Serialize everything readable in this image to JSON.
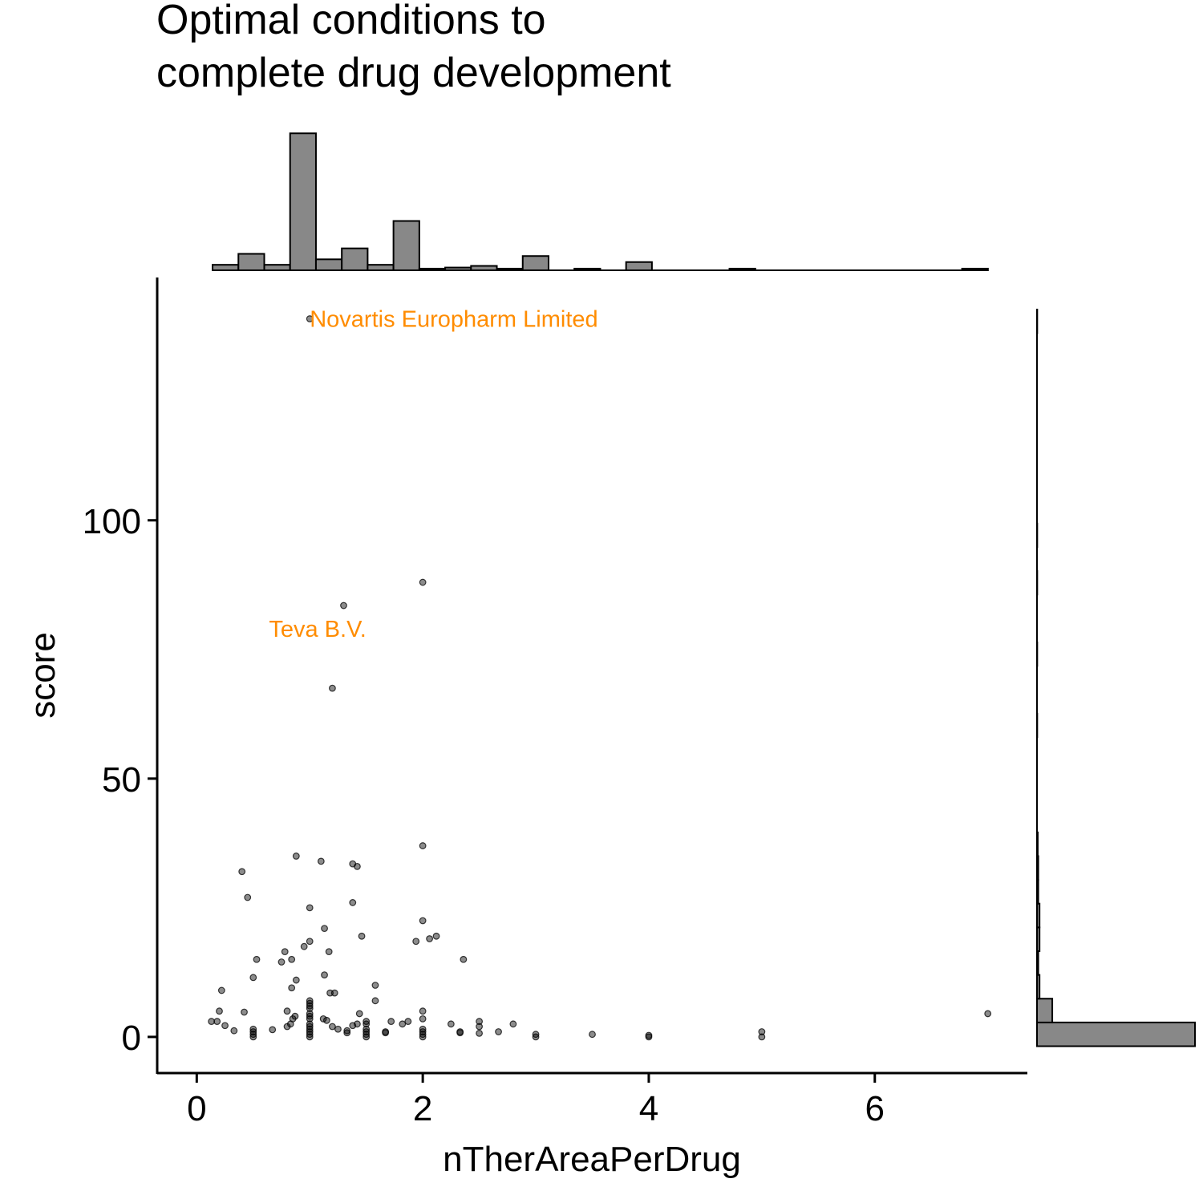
{
  "chart_data": {
    "type": "scatter",
    "title_lines": [
      "Optimal conditions to",
      "complete drug development"
    ],
    "xlabel": "nTherAreaPerDrug",
    "ylabel": "score",
    "xlim": [
      -0.35,
      7.35
    ],
    "ylim": [
      -7,
      147
    ],
    "x_ticks": [
      0,
      2,
      4,
      6
    ],
    "y_ticks": [
      0,
      50,
      100
    ],
    "grid": false,
    "legend": "none",
    "colors": {
      "points": "#000000",
      "annotation": "#ff8c00",
      "hist_fill": "#888888",
      "hist_stroke": "#000000"
    },
    "points": [
      [
        1,
        139
      ],
      [
        2,
        88
      ],
      [
        1.3,
        83.5
      ],
      [
        1.2,
        67.5
      ],
      [
        2,
        37
      ],
      [
        0.88,
        35
      ],
      [
        1.1,
        34
      ],
      [
        1.38,
        33.5
      ],
      [
        1.42,
        33
      ],
      [
        0.4,
        32
      ],
      [
        0.45,
        27
      ],
      [
        1.38,
        26
      ],
      [
        1,
        25
      ],
      [
        2,
        22.5
      ],
      [
        1.13,
        21
      ],
      [
        2.12,
        19.5
      ],
      [
        2.06,
        19
      ],
      [
        1.46,
        19.5
      ],
      [
        1.94,
        18.5
      ],
      [
        1,
        18.5
      ],
      [
        0.95,
        17.5
      ],
      [
        0.78,
        16.5
      ],
      [
        1.17,
        16.5
      ],
      [
        0.53,
        15
      ],
      [
        0.84,
        15
      ],
      [
        2.36,
        15
      ],
      [
        0.75,
        14.5
      ],
      [
        1.13,
        12
      ],
      [
        0.5,
        11.5
      ],
      [
        0.88,
        11
      ],
      [
        1.58,
        10
      ],
      [
        0.22,
        9
      ],
      [
        1.18,
        8.5
      ],
      [
        1.22,
        8.5
      ],
      [
        0.84,
        9.5
      ],
      [
        1.58,
        7
      ],
      [
        1,
        7
      ],
      [
        1,
        6.5
      ],
      [
        1,
        6
      ],
      [
        1,
        5.5
      ],
      [
        0.2,
        5
      ],
      [
        0.42,
        4.8
      ],
      [
        0.8,
        5
      ],
      [
        2,
        5
      ],
      [
        1.44,
        4.5
      ],
      [
        0.87,
        4
      ],
      [
        0.85,
        3.5
      ],
      [
        1,
        4.5
      ],
      [
        1,
        4
      ],
      [
        1,
        3.5
      ],
      [
        1.12,
        3.5
      ],
      [
        1.15,
        3.2
      ],
      [
        0.13,
        3
      ],
      [
        0.18,
        3
      ],
      [
        1.5,
        3
      ],
      [
        1.72,
        3
      ],
      [
        1.82,
        2.5
      ],
      [
        1.87,
        3
      ],
      [
        2,
        3.5
      ],
      [
        2.5,
        3
      ],
      [
        0.25,
        2.2
      ],
      [
        0.8,
        2
      ],
      [
        0.83,
        2.5
      ],
      [
        1.2,
        2
      ],
      [
        1.38,
        2.2
      ],
      [
        1.42,
        2.5
      ],
      [
        1.5,
        2.5
      ],
      [
        2.25,
        2.5
      ],
      [
        2.5,
        2
      ],
      [
        2.8,
        2.5
      ],
      [
        0.33,
        1.2
      ],
      [
        0.5,
        1.5
      ],
      [
        0.5,
        1
      ],
      [
        0.67,
        1.4
      ],
      [
        1,
        2.5
      ],
      [
        1,
        2
      ],
      [
        1,
        1.5
      ],
      [
        1,
        1
      ],
      [
        1.25,
        1.5
      ],
      [
        1.33,
        1.2
      ],
      [
        1.5,
        1.5
      ],
      [
        1.5,
        1
      ],
      [
        1.67,
        1
      ],
      [
        2,
        1.5
      ],
      [
        2,
        1
      ],
      [
        2.33,
        1
      ],
      [
        2.5,
        0.7
      ],
      [
        2.67,
        1
      ],
      [
        3,
        0.5
      ],
      [
        5,
        1
      ],
      [
        0.5,
        0.5
      ],
      [
        0.5,
        0
      ],
      [
        1,
        0.5
      ],
      [
        1,
        0
      ],
      [
        1.33,
        0.8
      ],
      [
        1.5,
        0.5
      ],
      [
        1.5,
        0
      ],
      [
        1.67,
        0.8
      ],
      [
        2,
        0.5
      ],
      [
        2,
        0
      ],
      [
        2.33,
        0.8
      ],
      [
        3,
        0
      ],
      [
        3.5,
        0.5
      ],
      [
        4,
        0
      ],
      [
        4,
        0.3
      ],
      [
        5,
        0
      ],
      [
        7,
        4.5
      ]
    ],
    "annotations": [
      {
        "text": "Novartis Europharm Limited",
        "x": 1,
        "y": 139
      },
      {
        "text": "Teva B.V.",
        "x": 1.07,
        "y": 79
      }
    ],
    "marginal_x_hist": {
      "bin_width": 0.2287,
      "start": 0.14,
      "counts": [
        1,
        3,
        1,
        25,
        2,
        4,
        1,
        9,
        0.3,
        0.5,
        0.8,
        0.3,
        2.6,
        0,
        0.3,
        0,
        1.5,
        0,
        0,
        0,
        0.3,
        0,
        0,
        0,
        0,
        0,
        0,
        0,
        0,
        0.3
      ],
      "ymax": 26.5
    },
    "marginal_y_hist": {
      "bin_width": 4.6,
      "start": -1.8,
      "counts": [
        62,
        6,
        1,
        0.5,
        1,
        1,
        0.5,
        0.5,
        0.3,
        0,
        0,
        0,
        0,
        0.1,
        0,
        0,
        0.1,
        0,
        0,
        0.1,
        0,
        0.1,
        0,
        0,
        0,
        0,
        0,
        0,
        0,
        0,
        0.1
      ],
      "xmax": 62
    }
  }
}
